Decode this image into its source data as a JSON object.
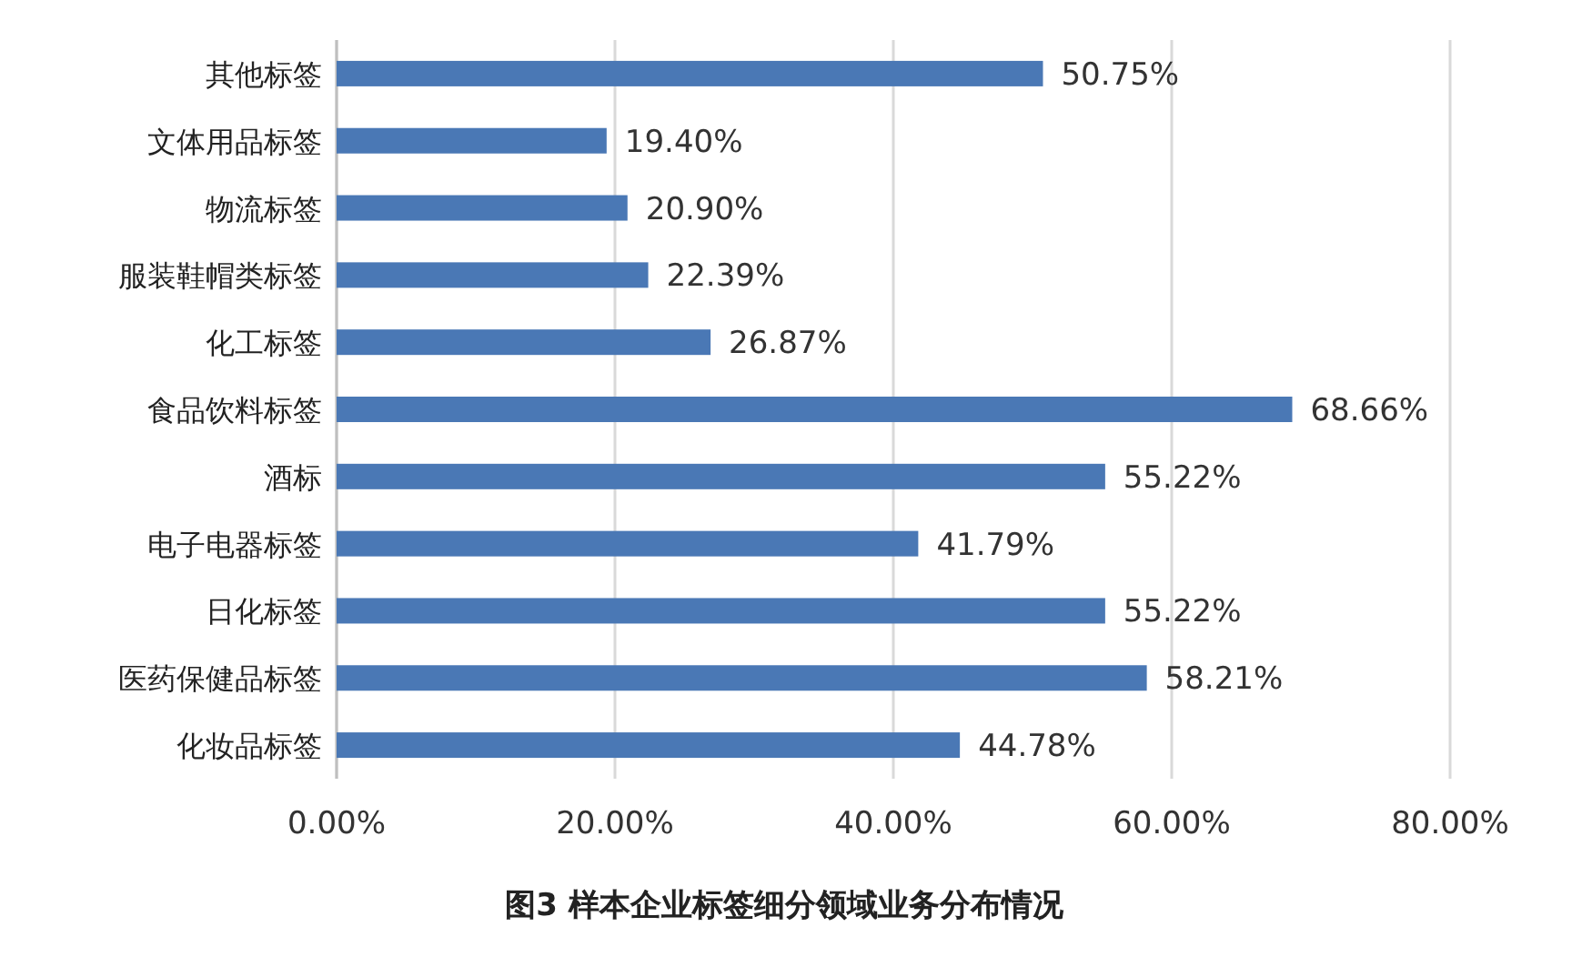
{
  "chart_data": {
    "type": "bar",
    "orientation": "horizontal",
    "title": "图3 样本企业标签细分领域业务分布情况",
    "categories": [
      "其他标签",
      "文体用品标签",
      "物流标签",
      "服装鞋帽类标签",
      "化工标签",
      "食品饮料标签",
      "酒标",
      "电子电器标签",
      "日化标签",
      "医药保健品标签",
      "化妆品标签"
    ],
    "values": [
      50.75,
      19.4,
      20.9,
      22.39,
      26.87,
      68.66,
      55.22,
      41.79,
      55.22,
      58.21,
      44.78
    ],
    "value_labels": [
      "50.75%",
      "19.40%",
      "20.90%",
      "22.39%",
      "26.87%",
      "68.66%",
      "55.22%",
      "41.79%",
      "55.22%",
      "58.21%",
      "44.78%"
    ],
    "color": "#4a78b5",
    "xlim": [
      0,
      80
    ],
    "xticks": [
      {
        "value": 0,
        "label": "0.00%"
      },
      {
        "value": 20,
        "label": "20.00%"
      },
      {
        "value": 40,
        "label": "40.00%"
      },
      {
        "value": 60,
        "label": "60.00%"
      },
      {
        "value": 80,
        "label": "80.00%"
      }
    ],
    "grid": "x"
  }
}
